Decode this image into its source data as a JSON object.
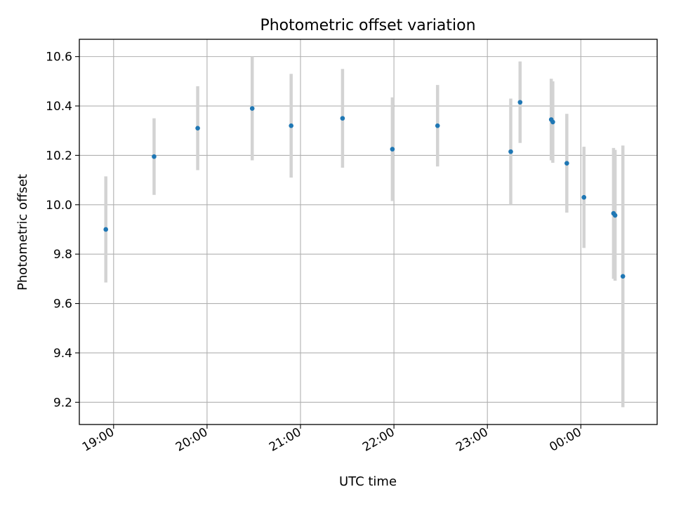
{
  "chart_data": {
    "type": "scatter",
    "title": "Photometric offset variation",
    "xlabel": "UTC time",
    "ylabel": "Photometric offset",
    "x_range": [
      "18:38",
      "00:49"
    ],
    "xticks": [
      "19:00",
      "20:00",
      "21:00",
      "22:00",
      "23:00",
      "00:00"
    ],
    "ylim": [
      9.11,
      10.67
    ],
    "yticks": [
      "9.2",
      "9.4",
      "9.6",
      "9.8",
      "10.0",
      "10.2",
      "10.4",
      "10.6"
    ],
    "grid": true,
    "legend": "none",
    "errorbars": true,
    "series": [
      {
        "points": [
          {
            "t": "18:55",
            "y": 9.9,
            "err": 0.215
          },
          {
            "t": "19:26",
            "y": 10.195,
            "err": 0.155
          },
          {
            "t": "19:54",
            "y": 10.31,
            "err": 0.17
          },
          {
            "t": "20:29",
            "y": 10.39,
            "err": 0.21
          },
          {
            "t": "20:54",
            "y": 10.32,
            "err": 0.21
          },
          {
            "t": "21:27",
            "y": 10.35,
            "err": 0.2
          },
          {
            "t": "21:59",
            "y": 10.225,
            "err": 0.21
          },
          {
            "t": "22:28",
            "y": 10.32,
            "err": 0.165
          },
          {
            "t": "23:15",
            "y": 10.215,
            "err": 0.215
          },
          {
            "t": "23:21",
            "y": 10.415,
            "err": 0.165
          },
          {
            "t": "23:41",
            "y": 10.345,
            "err": 0.165
          },
          {
            "t": "23:42",
            "y": 10.335,
            "err": 0.165
          },
          {
            "t": "23:51",
            "y": 10.168,
            "err": 0.2
          },
          {
            "t": "00:02",
            "y": 10.03,
            "err": 0.205
          },
          {
            "t": "00:21",
            "y": 9.965,
            "err": 0.265
          },
          {
            "t": "00:22",
            "y": 9.957,
            "err": 0.265
          },
          {
            "t": "00:27",
            "y": 9.71,
            "err": 0.53
          }
        ]
      }
    ],
    "colors": {
      "marker": "#1f77b4",
      "errorbar": "#d3d3d3",
      "grid": "#b0b0b0"
    }
  }
}
